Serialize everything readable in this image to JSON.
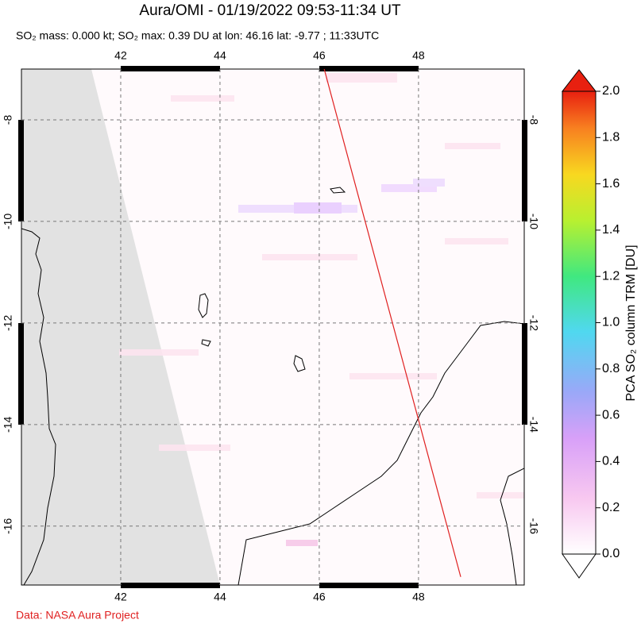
{
  "chart_data": {
    "type": "map",
    "title": "Aura/OMI - 01/19/2022 09:53-11:34 UT",
    "subtitle": "SO₂ mass: 0.000 kt; SO₂ max: 0.39 DU at lon: 46.16 lat: -9.77 ; 11:33UTC",
    "xlim": [
      40,
      50.13
    ],
    "ylim": [
      -17.16,
      -7
    ],
    "xticks": [
      42,
      44,
      46,
      48
    ],
    "yticks": [
      -8,
      -10,
      -12,
      -14,
      -16
    ],
    "track": {
      "color": "#e02020",
      "lon": [
        46.1,
        48.85
      ],
      "lat": [
        -7,
        -17
      ]
    },
    "colorbar": {
      "label": "PCA SO₂ column TRM [DU]",
      "lim": [
        0,
        2
      ],
      "ticks": [
        {
          "value": 0,
          "label": "0.0"
        },
        0.2,
        0.4,
        0.6,
        0.8,
        {
          "value": 1,
          "label": "1.0"
        },
        1.2,
        1.4,
        1.6,
        1.8,
        {
          "value": 2,
          "label": "2.0"
        }
      ]
    },
    "footer": "Data: NASA Aura Project"
  }
}
